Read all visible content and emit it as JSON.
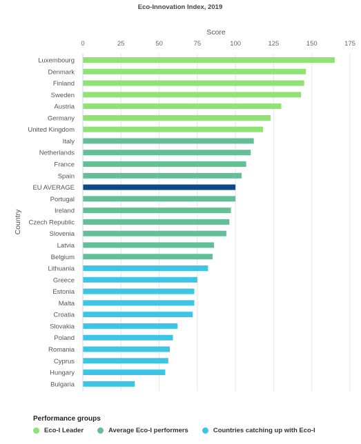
{
  "chart_data": {
    "type": "bar",
    "orientation": "horizontal",
    "title": "Eco-Innovation Index, 2019",
    "xlabel": "Score",
    "ylabel": "Country",
    "xlim": [
      0,
      175
    ],
    "xticks": [
      0,
      25,
      50,
      75,
      100,
      125,
      150,
      175
    ],
    "grid": true,
    "legend_position": "bottom-left",
    "categories": [
      "Luxembourg",
      "Denmark",
      "Finland",
      "Sweden",
      "Austria",
      "Germany",
      "United Kingdom",
      "Italy",
      "Netherlands",
      "France",
      "Spain",
      "EU AVERAGE",
      "Portugal",
      "Ireland",
      "Czech Republic",
      "Slovenia",
      "Latvia",
      "Belgium",
      "Lithuania",
      "Greece",
      "Estonia",
      "Malta",
      "Croatia",
      "Slovakia",
      "Poland",
      "Romania",
      "Cyprus",
      "Hungary",
      "Bulgaria"
    ],
    "values": [
      165,
      146,
      145,
      143,
      130,
      123,
      118,
      112,
      110,
      107,
      104,
      100,
      100,
      97,
      96,
      94,
      86,
      85,
      82,
      75,
      73,
      73,
      72,
      62,
      59,
      57,
      56,
      54,
      34
    ],
    "groups": [
      "leader",
      "leader",
      "leader",
      "leader",
      "leader",
      "leader",
      "leader",
      "average",
      "average",
      "average",
      "average",
      "eu",
      "average",
      "average",
      "average",
      "average",
      "average",
      "average",
      "catching",
      "catching",
      "catching",
      "catching",
      "catching",
      "catching",
      "catching",
      "catching",
      "catching",
      "catching",
      "catching"
    ],
    "legend": {
      "title": "Performance groups",
      "items": [
        {
          "key": "leader",
          "label": "Eco-I Leader",
          "color": "#90e273"
        },
        {
          "key": "average",
          "label": "Average Eco-I performers",
          "color": "#62bf96"
        },
        {
          "key": "catching",
          "label": "Countries catching up with Eco-I",
          "color": "#3ec5e6"
        }
      ]
    },
    "colors": {
      "leader": "#90e273",
      "average": "#62bf96",
      "catching": "#3ec5e6",
      "eu": "#0d4a87"
    }
  }
}
